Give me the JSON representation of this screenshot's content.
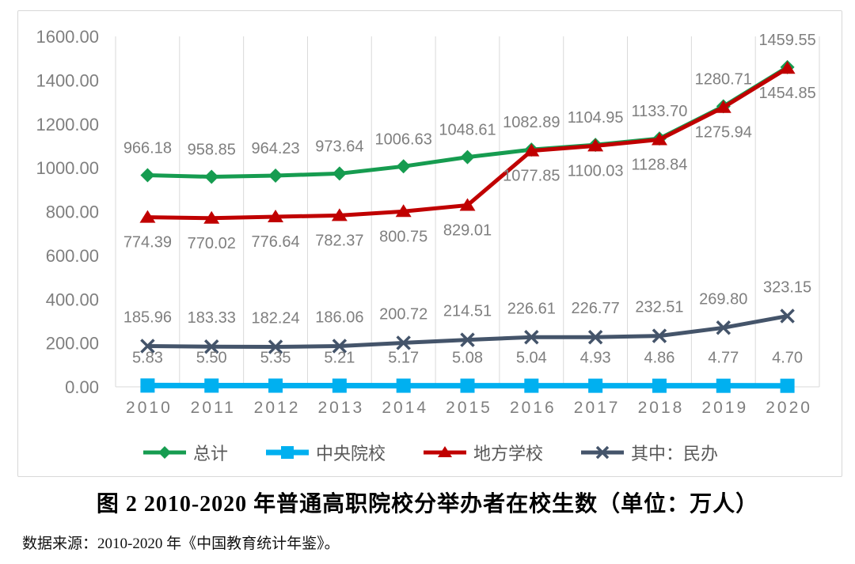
{
  "figure": {
    "caption": "图 2  2010-2020 年普通高职院校分举办者在校生数（单位：万人）",
    "source": "数据来源：2010-2020 年《中国教育统计年鉴》。"
  },
  "colors": {
    "total": "#169c50",
    "central": "#00b0f0",
    "local": "#c00000",
    "private": "#44546a",
    "gridline": "#d9d9d9",
    "axis_text": "#7f7f7f",
    "data_label": "#7f7f7f",
    "legend_text": "#595959"
  },
  "chart_data": {
    "type": "line",
    "title": "",
    "xlabel": "",
    "ylabel": "",
    "categories": [
      "2010",
      "2011",
      "2012",
      "2013",
      "2014",
      "2015",
      "2016",
      "2017",
      "2018",
      "2019",
      "2020"
    ],
    "series": [
      {
        "id": "total",
        "name": "总计",
        "marker": "diamond",
        "color": "#169c50",
        "values": [
          966.18,
          958.85,
          964.23,
          973.64,
          1006.63,
          1048.61,
          1082.89,
          1104.95,
          1133.7,
          1280.71,
          1459.55
        ],
        "label_side": "above"
      },
      {
        "id": "central",
        "name": "中央院校",
        "marker": "square",
        "color": "#00b0f0",
        "values": [
          5.83,
          5.5,
          5.35,
          5.21,
          5.17,
          5.08,
          5.04,
          4.93,
          4.86,
          4.77,
          4.7
        ],
        "label_side": "above"
      },
      {
        "id": "local",
        "name": "地方学校",
        "marker": "triangle",
        "color": "#c00000",
        "values": [
          774.39,
          770.02,
          776.64,
          782.37,
          800.75,
          829.01,
          1077.85,
          1100.03,
          1128.84,
          1275.94,
          1454.85
        ],
        "label_side": "below"
      },
      {
        "id": "private",
        "name": "其中：民办",
        "marker": "x",
        "color": "#44546a",
        "values": [
          185.96,
          183.33,
          182.24,
          186.06,
          200.72,
          214.51,
          226.61,
          226.77,
          232.51,
          269.8,
          323.15
        ],
        "label_side": "above"
      }
    ],
    "draw_order": [
      0,
      2,
      3,
      1
    ],
    "ylim": [
      0,
      1600
    ],
    "ytick_step": 200,
    "ytick_format_decimals": 2,
    "data_labels": true,
    "grid": "vertical-between-categories",
    "legend_position": "bottom"
  }
}
